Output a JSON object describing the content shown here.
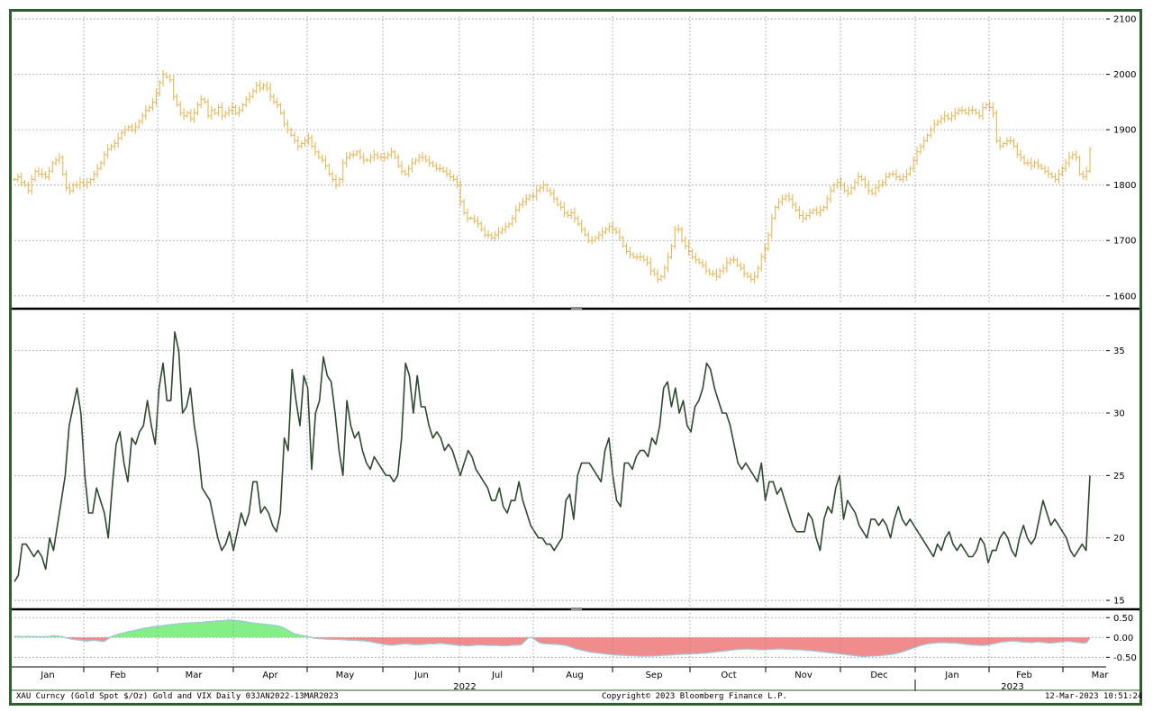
{
  "footer": {
    "left": "XAU Curncy (Gold Spot  $/Oz) Gold and VIX  Daily 03JAN2022-13MAR2023",
    "center": "Copyright© 2023 Bloomberg Finance L.P.",
    "right": "12-Mar-2023 10:51:24"
  },
  "colors": {
    "frame": "#2f5e2f",
    "gold_bars": "#e8b85a",
    "vix_line": "#2d4a2d",
    "diff_pos": "#86ee86",
    "diff_neg": "#f08c8c",
    "diff_line": "#9ec8d8"
  },
  "chart_data": [
    {
      "type": "ohlc",
      "series": [
        {
          "name": "XAU Curncy (Gold Spot $/Oz)",
          "values": [
            1810,
            1815,
            1805,
            1800,
            1790,
            1810,
            1825,
            1820,
            1820,
            1815,
            1825,
            1840,
            1845,
            1850,
            1820,
            1795,
            1790,
            1800,
            1800,
            1805,
            1800,
            1805,
            1810,
            1820,
            1830,
            1840,
            1855,
            1865,
            1870,
            1875,
            1885,
            1895,
            1900,
            1905,
            1900,
            1905,
            1915,
            1925,
            1935,
            1940,
            1950,
            1965,
            1985,
            2000,
            1995,
            1990,
            1960,
            1945,
            1930,
            1925,
            1930,
            1920,
            1930,
            1945,
            1955,
            1950,
            1925,
            1935,
            1930,
            1940,
            1925,
            1930,
            1935,
            1940,
            1930,
            1935,
            1945,
            1955,
            1960,
            1970,
            1980,
            1975,
            1980,
            1975,
            1960,
            1950,
            1945,
            1930,
            1910,
            1900,
            1890,
            1880,
            1870,
            1875,
            1880,
            1885,
            1870,
            1860,
            1850,
            1845,
            1835,
            1820,
            1810,
            1800,
            1810,
            1840,
            1850,
            1855,
            1855,
            1860,
            1850,
            1845,
            1845,
            1850,
            1855,
            1850,
            1850,
            1850,
            1855,
            1860,
            1850,
            1835,
            1825,
            1820,
            1830,
            1840,
            1845,
            1850,
            1850,
            1845,
            1840,
            1835,
            1830,
            1830,
            1825,
            1820,
            1815,
            1810,
            1800,
            1770,
            1750,
            1740,
            1740,
            1735,
            1730,
            1720,
            1710,
            1710,
            1705,
            1710,
            1715,
            1720,
            1725,
            1730,
            1740,
            1755,
            1765,
            1770,
            1775,
            1780,
            1780,
            1790,
            1795,
            1800,
            1790,
            1785,
            1775,
            1765,
            1760,
            1750,
            1745,
            1750,
            1740,
            1730,
            1720,
            1710,
            1700,
            1700,
            1705,
            1710,
            1715,
            1720,
            1725,
            1720,
            1715,
            1705,
            1690,
            1680,
            1675,
            1670,
            1670,
            1670,
            1665,
            1660,
            1645,
            1640,
            1630,
            1635,
            1650,
            1670,
            1690,
            1720,
            1720,
            1700,
            1690,
            1680,
            1670,
            1665,
            1660,
            1655,
            1645,
            1640,
            1640,
            1635,
            1645,
            1650,
            1660,
            1665,
            1665,
            1655,
            1650,
            1640,
            1635,
            1630,
            1635,
            1650,
            1670,
            1685,
            1710,
            1740,
            1760,
            1770,
            1775,
            1780,
            1775,
            1765,
            1755,
            1745,
            1740,
            1745,
            1750,
            1755,
            1750,
            1755,
            1760,
            1775,
            1790,
            1800,
            1805,
            1800,
            1790,
            1785,
            1795,
            1805,
            1815,
            1810,
            1800,
            1790,
            1785,
            1795,
            1800,
            1805,
            1815,
            1820,
            1820,
            1815,
            1810,
            1815,
            1820,
            1830,
            1845,
            1860,
            1870,
            1880,
            1890,
            1900,
            1910,
            1915,
            1920,
            1925,
            1920,
            1925,
            1930,
            1935,
            1935,
            1930,
            1935,
            1935,
            1930,
            1925,
            1940,
            1945,
            1940,
            1930,
            1880,
            1870,
            1875,
            1880,
            1880,
            1870,
            1855,
            1850,
            1840,
            1840,
            1835,
            1840,
            1835,
            1830,
            1825,
            1820,
            1815,
            1810,
            1820,
            1830,
            1840,
            1850,
            1855,
            1850,
            1820,
            1815,
            1825,
            1865
          ]
        }
      ],
      "x_tick_labels": [
        "Jan",
        "Feb",
        "Mar",
        "Apr",
        "May",
        "Jun",
        "Jul",
        "Aug",
        "Sep",
        "Oct",
        "Nov",
        "Dec",
        "Jan",
        "Feb",
        "Mar"
      ],
      "year_labels": [
        "2022",
        "2023"
      ],
      "y_ticks": [
        1600,
        1700,
        1800,
        1900,
        2000,
        2100
      ],
      "ylim": [
        1585,
        2105
      ],
      "grid": true
    },
    {
      "type": "line",
      "series": [
        {
          "name": "VIX",
          "values": [
            16.5,
            17,
            19.5,
            19.5,
            19,
            18.5,
            19,
            18.5,
            17.5,
            20,
            19,
            21,
            23,
            25,
            29,
            30.5,
            32,
            30,
            25,
            22,
            22,
            24,
            23,
            22,
            20,
            24,
            27.5,
            28.5,
            26,
            24.5,
            28,
            27.5,
            28.5,
            29,
            31,
            29,
            27.5,
            32,
            34,
            31,
            31,
            36.5,
            35,
            30,
            30.5,
            32,
            29,
            27,
            24,
            23.5,
            23,
            21.5,
            20,
            19,
            19.5,
            20.5,
            19,
            20.5,
            22,
            21,
            22,
            24.5,
            24.5,
            22,
            22.5,
            22,
            21,
            20.5,
            22,
            28,
            27,
            33.5,
            31,
            29,
            33,
            32,
            25.5,
            30,
            31,
            34.5,
            33,
            32.5,
            30,
            27,
            25,
            31,
            29,
            28,
            28.5,
            27,
            26,
            25.5,
            26.5,
            26,
            25.5,
            25,
            25,
            24.5,
            25,
            28,
            34,
            33,
            30,
            33,
            30.5,
            30.5,
            29,
            28,
            28.5,
            28,
            27,
            27.5,
            27,
            26,
            25,
            26,
            27,
            26.5,
            25.5,
            25,
            24.5,
            24,
            23,
            23,
            24,
            22.5,
            22,
            23,
            23,
            24.5,
            23,
            22,
            21,
            20.5,
            20,
            20,
            19.5,
            19.5,
            19,
            19.5,
            20,
            23,
            23.5,
            21.5,
            25,
            26,
            26,
            26,
            25.5,
            25,
            24.5,
            27,
            28,
            25,
            23,
            22.5,
            26,
            26,
            25.5,
            26.5,
            27,
            27,
            26.5,
            28,
            27.5,
            29,
            32,
            32.5,
            30.5,
            32,
            30,
            31,
            29,
            28.5,
            30.5,
            31,
            32,
            34,
            33.5,
            32,
            31,
            30,
            30,
            29,
            27.5,
            26,
            25.5,
            26,
            25.5,
            25,
            24.5,
            26,
            23,
            24.5,
            24.5,
            23.5,
            24,
            23,
            22,
            21,
            20.5,
            20.5,
            20.5,
            22,
            21.5,
            20,
            19,
            21.5,
            22.5,
            22,
            24,
            25,
            21.5,
            23,
            22.5,
            22,
            21,
            20.5,
            20,
            21.5,
            21.5,
            21,
            21.5,
            21,
            20,
            21.5,
            22.5,
            21.5,
            21,
            21.5,
            21,
            20.5,
            20,
            19.5,
            19,
            18.5,
            19.5,
            19,
            20,
            20.5,
            19.5,
            19,
            19.5,
            19,
            18.5,
            18.5,
            19,
            20,
            19.5,
            18,
            19,
            19,
            20,
            20.5,
            20,
            19,
            18.5,
            20,
            21,
            20,
            19.5,
            20,
            21.5,
            23,
            22,
            21,
            21.5,
            21,
            20.5,
            20,
            19,
            18.5,
            19,
            19.5,
            19,
            25
          ]
        }
      ],
      "y_ticks": [
        15,
        20,
        25,
        30,
        35
      ],
      "ylim": [
        14.5,
        38
      ],
      "grid": true
    },
    {
      "type": "area",
      "series": [
        {
          "name": "Gold and VIX",
          "values": [
            0.03,
            0.03,
            0.02,
            0.02,
            0.03,
            0.02,
            0.02,
            0.02,
            0.02,
            0.02,
            0.02,
            0.04,
            0.04,
            0.03,
            0.02,
            -0.01,
            -0.03,
            -0.05,
            -0.06,
            -0.07,
            -0.08,
            -0.09,
            -0.08,
            -0.07,
            -0.08,
            -0.09,
            -0.1,
            -0.05,
            0.02,
            0.05,
            0.08,
            0.1,
            0.12,
            0.15,
            0.16,
            0.18,
            0.2,
            0.22,
            0.24,
            0.25,
            0.27,
            0.28,
            0.29,
            0.3,
            0.31,
            0.32,
            0.33,
            0.34,
            0.35,
            0.36,
            0.36,
            0.37,
            0.37,
            0.38,
            0.38,
            0.39,
            0.4,
            0.4,
            0.41,
            0.42,
            0.42,
            0.43,
            0.44,
            0.44,
            0.43,
            0.42,
            0.41,
            0.4,
            0.38,
            0.37,
            0.36,
            0.35,
            0.34,
            0.33,
            0.32,
            0.31,
            0.3,
            0.28,
            0.25,
            0.2,
            0.15,
            0.1,
            0.08,
            0.06,
            0.04,
            0.02,
            0.01,
            -0.02,
            -0.03,
            -0.03,
            -0.04,
            -0.04,
            -0.05,
            -0.05,
            -0.05,
            -0.06,
            -0.06,
            -0.07,
            -0.07,
            -0.07,
            -0.08,
            -0.08,
            -0.09,
            -0.1,
            -0.12,
            -0.14,
            -0.15,
            -0.17,
            -0.18,
            -0.19,
            -0.19,
            -0.18,
            -0.17,
            -0.16,
            -0.16,
            -0.17,
            -0.18,
            -0.18,
            -0.18,
            -0.17,
            -0.16,
            -0.16,
            -0.16,
            -0.15,
            -0.15,
            -0.16,
            -0.17,
            -0.18,
            -0.19,
            -0.2,
            -0.2,
            -0.21,
            -0.21,
            -0.2,
            -0.19,
            -0.19,
            -0.19,
            -0.2,
            -0.2,
            -0.2,
            -0.2,
            -0.21,
            -0.21,
            -0.21,
            -0.2,
            -0.19,
            -0.19,
            -0.18,
            -0.1,
            -0.02,
            0.01,
            -0.05,
            -0.12,
            -0.15,
            -0.16,
            -0.16,
            -0.17,
            -0.17,
            -0.18,
            -0.19,
            -0.2,
            -0.23,
            -0.26,
            -0.29,
            -0.31,
            -0.33,
            -0.35,
            -0.37,
            -0.38,
            -0.39,
            -0.4,
            -0.41,
            -0.42,
            -0.43,
            -0.44,
            -0.44,
            -0.45,
            -0.45,
            -0.46,
            -0.46,
            -0.46,
            -0.47,
            -0.47,
            -0.47,
            -0.47,
            -0.47,
            -0.46,
            -0.46,
            -0.45,
            -0.45,
            -0.44,
            -0.44,
            -0.43,
            -0.43,
            -0.42,
            -0.42,
            -0.42,
            -0.41,
            -0.41,
            -0.4,
            -0.4,
            -0.39,
            -0.38,
            -0.37,
            -0.36,
            -0.35,
            -0.34,
            -0.33,
            -0.32,
            -0.31,
            -0.3,
            -0.3,
            -0.29,
            -0.29,
            -0.3,
            -0.3,
            -0.31,
            -0.31,
            -0.31,
            -0.3,
            -0.3,
            -0.29,
            -0.29,
            -0.29,
            -0.3,
            -0.3,
            -0.31,
            -0.31,
            -0.31,
            -0.32,
            -0.33,
            -0.33,
            -0.34,
            -0.35,
            -0.36,
            -0.37,
            -0.38,
            -0.39,
            -0.4,
            -0.41,
            -0.42,
            -0.43,
            -0.44,
            -0.45,
            -0.46,
            -0.47,
            -0.48,
            -0.48,
            -0.47,
            -0.47,
            -0.46,
            -0.46,
            -0.45,
            -0.44,
            -0.43,
            -0.42,
            -0.4,
            -0.38,
            -0.35,
            -0.32,
            -0.29,
            -0.26,
            -0.23,
            -0.2,
            -0.18,
            -0.16,
            -0.15,
            -0.14,
            -0.13,
            -0.13,
            -0.13,
            -0.14,
            -0.14,
            -0.14,
            -0.15,
            -0.16,
            -0.17,
            -0.18,
            -0.19,
            -0.19,
            -0.2,
            -0.2,
            -0.19,
            -0.18,
            -0.16,
            -0.14,
            -0.12,
            -0.11,
            -0.1,
            -0.09,
            -0.09,
            -0.1,
            -0.11,
            -0.12,
            -0.12,
            -0.13,
            -0.12,
            -0.11,
            -0.12,
            -0.13,
            -0.14,
            -0.14,
            -0.13,
            -0.12,
            -0.11,
            -0.1,
            -0.1,
            -0.11,
            -0.12,
            -0.13,
            -0.14,
            -0.13,
            -0.02
          ]
        }
      ],
      "y_ticks": [
        "0.50",
        "0.00",
        "-0.50"
      ],
      "ylim": [
        -0.72,
        0.62
      ],
      "grid": true
    }
  ]
}
